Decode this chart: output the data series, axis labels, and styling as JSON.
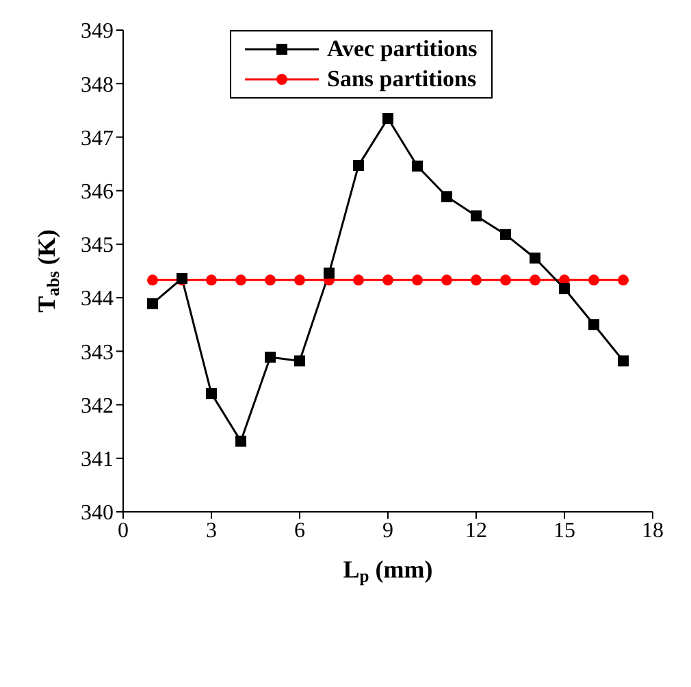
{
  "chart_data": {
    "type": "line",
    "xlabel": "L$_{p}$ (mm)",
    "ylabel": "T$_{abs}$ (K)",
    "x": [
      1,
      2,
      3,
      4,
      5,
      6,
      7,
      8,
      9,
      10,
      11,
      12,
      13,
      14,
      15,
      16,
      17
    ],
    "series": [
      {
        "name": "Avec partitions",
        "color": "#000000",
        "marker": "square",
        "values": [
          343.89,
          344.36,
          342.21,
          341.32,
          342.89,
          342.82,
          344.46,
          346.47,
          347.35,
          346.46,
          345.89,
          345.53,
          345.18,
          344.74,
          344.17,
          343.5,
          342.82
        ]
      },
      {
        "name": "Sans partitions",
        "color": "#ff0000",
        "marker": "circle",
        "values": [
          344.33,
          344.33,
          344.33,
          344.33,
          344.33,
          344.33,
          344.33,
          344.33,
          344.33,
          344.33,
          344.33,
          344.33,
          344.33,
          344.33,
          344.33,
          344.33,
          344.33
        ]
      }
    ],
    "xlim": [
      0,
      18
    ],
    "xticks": [
      0,
      3,
      6,
      9,
      12,
      15,
      18
    ],
    "ylim": [
      340,
      349
    ],
    "yticks": [
      340,
      341,
      342,
      343,
      344,
      345,
      346,
      347,
      348,
      349
    ],
    "grid": false,
    "legend": "top",
    "line_style": "solid"
  }
}
